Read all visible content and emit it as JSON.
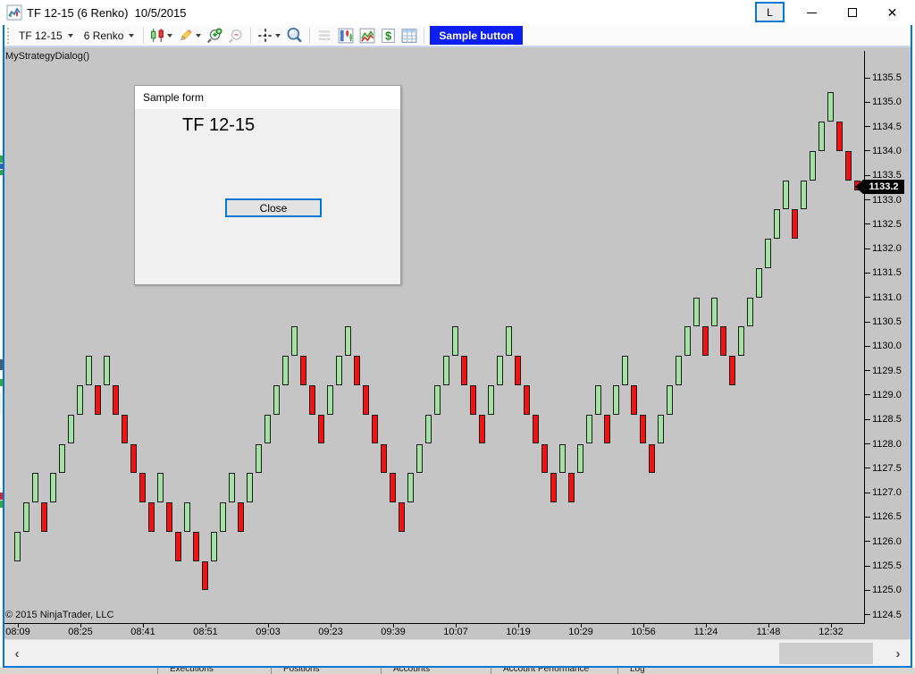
{
  "window": {
    "title": "TF 12-15 (6 Renko)  10/5/2015",
    "l_button_label": "L"
  },
  "toolbar": {
    "instrument_selector": "TF 12-15",
    "period_selector": "6 Renko",
    "sample_button_label": "Sample button",
    "sample_button_color": "#0c1ff0",
    "icons": [
      "candle-style-icon",
      "pencil-draw-icon",
      "zoom-in-icon",
      "zoom-out-icon",
      "crosshair-icon",
      "data-box-icon",
      "panels-icon",
      "chart-trader-icon",
      "mini-chart-icon",
      "dollar-icon",
      "grid-table-icon"
    ]
  },
  "chart": {
    "strategy_label": "MyStrategyDialog()",
    "copyright": "© 2015 NinjaTrader, LLC",
    "background": "#c5c5c5",
    "price_marker": {
      "value": "1133.2",
      "bg": "#000000",
      "fg": "#ffffff"
    }
  },
  "dialog": {
    "title": "Sample form",
    "content_label": "TF 12-15",
    "close_button_label": "Close"
  },
  "scrollbar": {
    "left_arrow": "‹",
    "right_arrow": "›"
  },
  "background_tabs": [
    "Executions",
    "Positions",
    "Accounts",
    "Account Performance",
    "Log"
  ],
  "chart_data": {
    "type": "renko",
    "title": "TF 12-15 (6 Renko) 10/5/2015",
    "brick_size": 0.6,
    "first_brick_low": 1125.6,
    "brick_directions": "UUUDUUUUUDUDDDDDUDDUDDUUUDUUUUUUDDDUUUDDDDDDUUUUUUDDDUUUDDDDDUDUUUDUUDDDUUUUUDUDDUUUUUUDUUUUDDD",
    "last_brick_partial_close": 1133.2,
    "current_price": 1133.2,
    "high": 1135.2,
    "low": 1125.0,
    "up_color": "#a2e3a2",
    "down_color": "#f21212",
    "y_axis": {
      "min": 1124.5,
      "max": 1135.5,
      "step": 0.5
    },
    "x_labels": [
      "08:09",
      "08:25",
      "08:41",
      "08:51",
      "09:03",
      "09:23",
      "09:39",
      "10:07",
      "10:19",
      "10:29",
      "10:56",
      "11:24",
      "11:48",
      "12:32"
    ],
    "legend": "none",
    "grid": false
  }
}
